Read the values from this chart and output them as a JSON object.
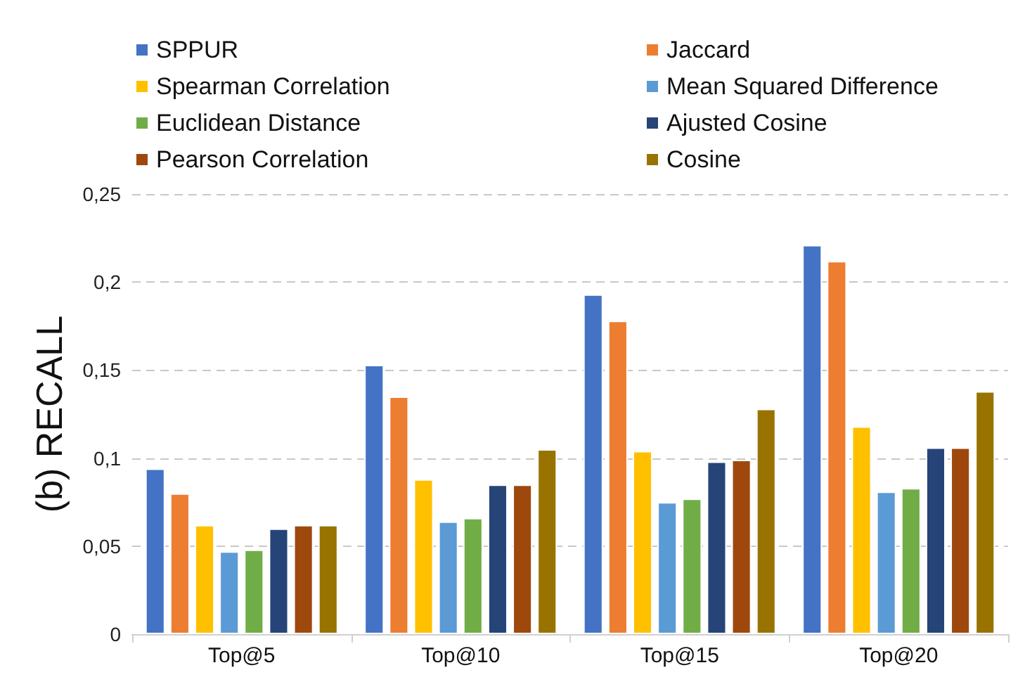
{
  "chart_data": {
    "type": "bar",
    "ylabel": "(b) RECALL",
    "categories": [
      "Top@5",
      "Top@10",
      "Top@15",
      "Top@20"
    ],
    "series": [
      {
        "name": "SPPUR",
        "color": "#4472c4",
        "values": [
          0.094,
          0.153,
          0.193,
          0.221
        ]
      },
      {
        "name": "Jaccard",
        "color": "#ed7d31",
        "values": [
          0.08,
          0.135,
          0.178,
          0.212
        ]
      },
      {
        "name": "Spearman Correlation",
        "color": "#ffc000",
        "values": [
          0.062,
          0.088,
          0.104,
          0.118
        ]
      },
      {
        "name": "Mean Squared Difference",
        "color": "#5b9bd5",
        "values": [
          0.047,
          0.064,
          0.075,
          0.081
        ]
      },
      {
        "name": "Euclidean Distance",
        "color": "#70ad47",
        "values": [
          0.048,
          0.066,
          0.077,
          0.083
        ]
      },
      {
        "name": "Ajusted Cosine",
        "color": "#264478",
        "values": [
          0.06,
          0.085,
          0.098,
          0.106
        ]
      },
      {
        "name": "Pearson Correlation",
        "color": "#9e480e",
        "values": [
          0.062,
          0.085,
          0.099,
          0.106
        ]
      },
      {
        "name": "Cosine",
        "color": "#997300",
        "values": [
          0.062,
          0.105,
          0.128,
          0.138
        ]
      }
    ],
    "ylim": [
      0,
      0.25
    ],
    "yticks": [
      0,
      {
        "value": 0.05,
        "label": "0,05"
      },
      {
        "value": 0.1,
        "label": "0,1"
      },
      {
        "value": 0.15,
        "label": "0,15"
      },
      {
        "value": 0.2,
        "label": "0,2"
      },
      {
        "value": 0.25,
        "label": "0,25"
      }
    ],
    "grid": "y",
    "legend": "top"
  }
}
